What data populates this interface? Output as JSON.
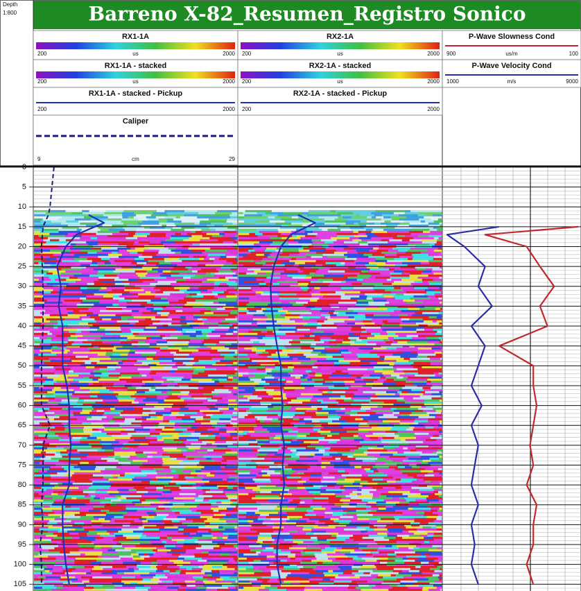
{
  "chart_data": {
    "type": "well-log",
    "title": "Barreno X-82_Resumen_Registro Sonico",
    "depth_label": "Depth",
    "depth_scale": "1:800",
    "ylim": [
      0,
      106
    ],
    "yticks": [
      0,
      5,
      10,
      15,
      20,
      25,
      30,
      35,
      40,
      45,
      50,
      55,
      60,
      65,
      70,
      75,
      80,
      85,
      90,
      95,
      100,
      105
    ],
    "tracks": [
      {
        "images": [
          {
            "name": "RX1-1A",
            "unit": "us",
            "xlim": [
              200,
              2000
            ]
          },
          {
            "name": "RX1-1A - stacked",
            "unit": "us",
            "xlim": [
              200,
              2000
            ]
          }
        ],
        "curves": [
          {
            "name": "RX1-1A - stacked - Pickup",
            "color": "#1f2fb0",
            "xlim": [
              200,
              2000
            ],
            "depths": [
              12,
              14,
              17,
              20,
              25,
              30,
              35,
              40,
              45,
              50,
              55,
              60,
              65,
              70,
              75,
              80,
              85,
              90,
              95,
              100,
              105
            ],
            "values": [
              675,
              815,
              565,
              470,
              390,
              425,
              405,
              440,
              440,
              440,
              480,
              500,
              500,
              515,
              500,
              500,
              440,
              440,
              450,
              470,
              500
            ]
          },
          {
            "name": "Caliper",
            "unit": "cm",
            "color": "#1a1a80",
            "dashed": true,
            "xlim": [
              9,
              29
            ],
            "depths": [
              0,
              10,
              12,
              15,
              20,
              30,
              40,
              50,
              60,
              65,
              70,
              75,
              80,
              85,
              90,
              95,
              100,
              105
            ],
            "values": [
              10.8,
              10.4,
              10.25,
              9.7,
              9.55,
              9.7,
              9.7,
              9.55,
              9.55,
              10.4,
              9.7,
              9.7,
              9.7,
              9.55,
              9.7,
              9.4,
              9.55,
              9.55
            ]
          }
        ]
      },
      {
        "images": [
          {
            "name": "RX2-1A",
            "unit": "us",
            "xlim": [
              200,
              2000
            ]
          },
          {
            "name": "RX2-1A - stacked",
            "unit": "us",
            "xlim": [
              200,
              2000
            ]
          }
        ],
        "curves": [
          {
            "name": "RX2-1A - stacked - Pickup",
            "color": "#1f2fb0",
            "xlim": [
              200,
              2000
            ],
            "depths": [
              12,
              14,
              17,
              20,
              25,
              30,
              35,
              40,
              45,
              50,
              55,
              60,
              65,
              70,
              75,
              80,
              85,
              90,
              95,
              100,
              105
            ],
            "values": [
              720,
              875,
              655,
              565,
              500,
              470,
              480,
              500,
              530,
              565,
              565,
              580,
              565,
              595,
              580,
              595,
              565,
              565,
              530,
              530,
              565
            ]
          }
        ]
      },
      {
        "images": [],
        "curves": [
          {
            "name": "P-Wave Slowness Cond",
            "unit": "us/m",
            "color": "#c0282d",
            "xlim": [
              900,
              100
            ],
            "depths": [
              15,
              17,
              20,
              25,
              30,
              35,
              40,
              45,
              50,
              55,
              60,
              65,
              70,
              75,
              80,
              85,
              90,
              95,
              100,
              105
            ],
            "values": [
              100,
              660,
              410,
              330,
              245,
              330,
              285,
              575,
              370,
              370,
              350,
              370,
              390,
              370,
              410,
              350,
              370,
              370,
              410,
              370
            ]
          },
          {
            "name": "P-Wave Velocity Cond",
            "unit": "m/s",
            "color": "#2b2ba8",
            "xlim": [
              1000,
              9000
            ],
            "depths": [
              15,
              17,
              20,
              25,
              30,
              35,
              40,
              45,
              50,
              55,
              60,
              65,
              70,
              75,
              80,
              85,
              90,
              95,
              100,
              105
            ],
            "values": [
              4230,
              1120,
              2160,
              3400,
              2990,
              3820,
              2580,
              3400,
              2990,
              2580,
              3200,
              2580,
              2990,
              2780,
              2580,
              2990,
              2580,
              2780,
              2580,
              2990
            ]
          }
        ]
      }
    ]
  }
}
